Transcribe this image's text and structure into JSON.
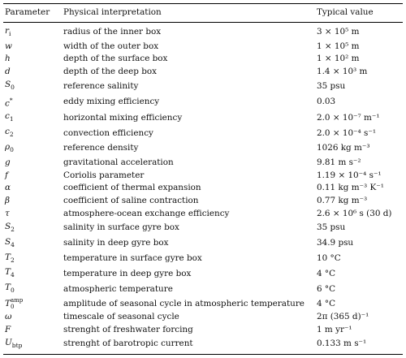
{
  "table": {
    "headers": [
      "Parameter",
      "Physical interpretation",
      "Typical value"
    ],
    "rows": [
      {
        "param": "ri",
        "desc": "radius of the inner box",
        "value": "3 × 10⁵ m"
      },
      {
        "param": "w",
        "desc": "width of the outer box",
        "value": "1 × 10⁵ m"
      },
      {
        "param": "h",
        "desc": "depth of the surface box",
        "value": "1 × 10² m"
      },
      {
        "param": "d",
        "desc": "depth of the deep box",
        "value": "1.4 × 10³ m"
      },
      {
        "param": "S0",
        "desc": "reference salinity",
        "value": "35 psu"
      },
      {
        "param": "c*",
        "desc": "eddy mixing efficiency",
        "value": "0.03"
      },
      {
        "param": "c1",
        "desc": "horizontal mixing efficiency",
        "value": "2.0 × 10⁻⁷ m⁻¹"
      },
      {
        "param": "c2",
        "desc": "convection efficiency",
        "value": "2.0 × 10⁻⁴ s⁻¹"
      },
      {
        "param": "ρ0",
        "desc": "reference density",
        "value": "1026 kg m⁻³"
      },
      {
        "param": "g",
        "desc": "gravitational acceleration",
        "value": "9.81 m s⁻²"
      },
      {
        "param": "f",
        "desc": "Coriolis parameter",
        "value": "1.19 × 10⁻⁴ s⁻¹"
      },
      {
        "param": "α",
        "desc": "coefficient of thermal expansion",
        "value": "0.11 kg m⁻³ K⁻¹"
      },
      {
        "param": "β",
        "desc": "coefficient of saline contraction",
        "value": "0.77 kg m⁻³"
      },
      {
        "param": "τ",
        "desc": "atmosphere-ocean exchange efficiency",
        "value": "2.6 × 10⁶ s (30 d)"
      },
      {
        "param": "S2",
        "desc": "salinity in surface gyre box",
        "value": "35 psu"
      },
      {
        "param": "S4",
        "desc": "salinity in deep gyre box",
        "value": "34.9 psu"
      },
      {
        "param": "T2",
        "desc": "temperature in surface gyre box",
        "value": "10 °C"
      },
      {
        "param": "T4",
        "desc": "temperature in deep gyre box",
        "value": "4 °C"
      },
      {
        "param": "T0",
        "desc": "atmospheric temperature",
        "value": "6 °C"
      },
      {
        "param": "T0amp",
        "desc": "amplitude of seasonal cycle in atmospheric temperature",
        "value": "4 °C"
      },
      {
        "param": "ω",
        "desc": "timescale of seasonal cycle",
        "value": "2π (365 d)⁻¹"
      },
      {
        "param": "F",
        "desc": "strenght of freshwater forcing",
        "value": "1 m yr⁻¹"
      },
      {
        "param": "Ubtp",
        "desc": "strenght of barotropic current",
        "value": "0.133 m s⁻¹"
      }
    ]
  }
}
